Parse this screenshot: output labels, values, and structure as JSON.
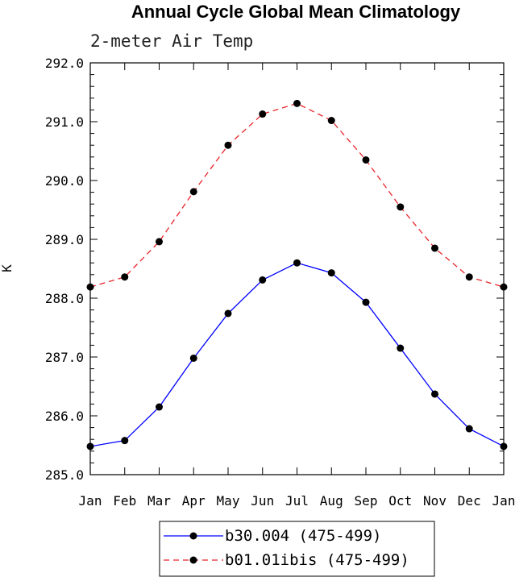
{
  "chart_data": {
    "type": "line",
    "title": "Annual Cycle Global Mean Climatology",
    "subtitle": "2-meter Air Temp",
    "ylabel": "K",
    "xlabel": "",
    "categories": [
      "Jan",
      "Feb",
      "Mar",
      "Apr",
      "May",
      "Jun",
      "Jul",
      "Aug",
      "Sep",
      "Oct",
      "Nov",
      "Dec",
      "Jan"
    ],
    "ylim": [
      285.0,
      292.0
    ],
    "yticks": [
      285.0,
      286.0,
      287.0,
      288.0,
      289.0,
      290.0,
      291.0,
      292.0
    ],
    "ytick_labels": [
      "285.0",
      "286.0",
      "287.0",
      "288.0",
      "289.0",
      "290.0",
      "291.0",
      "292.0"
    ],
    "grid": false,
    "legend_position": "bottom",
    "series": [
      {
        "name": "b30.004 (475-499)",
        "color": "#0000ff",
        "dash": "solid",
        "marker": "circle",
        "values": [
          285.48,
          285.58,
          286.15,
          286.98,
          287.74,
          288.31,
          288.6,
          288.43,
          287.93,
          287.15,
          286.37,
          285.78,
          285.48
        ]
      },
      {
        "name": "b01.01ibis (475-499)",
        "color": "#e8242a",
        "dash": "dashed",
        "marker": "circle",
        "values": [
          288.19,
          288.36,
          288.96,
          289.81,
          290.6,
          291.13,
          291.31,
          291.02,
          290.35,
          289.55,
          288.85,
          288.36,
          288.19
        ]
      }
    ]
  }
}
